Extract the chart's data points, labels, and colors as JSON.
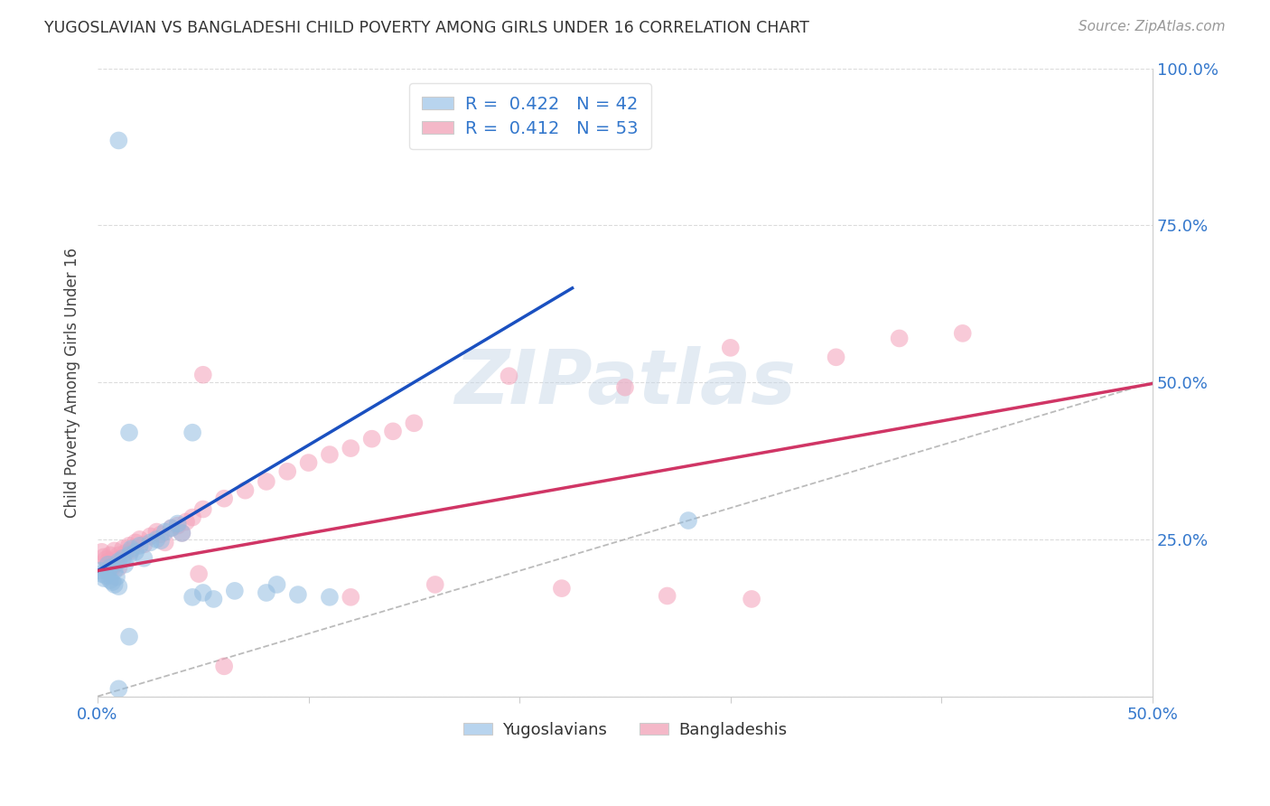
{
  "title": "YUGOSLAVIAN VS BANGLADESHI CHILD POVERTY AMONG GIRLS UNDER 16 CORRELATION CHART",
  "source": "Source: ZipAtlas.com",
  "ylabel": "Child Poverty Among Girls Under 16",
  "xlim": [
    0.0,
    0.5
  ],
  "ylim": [
    0.0,
    1.0
  ],
  "xticks": [
    0.0,
    0.1,
    0.2,
    0.3,
    0.4,
    0.5
  ],
  "xtick_labels_show": [
    "0.0%",
    "",
    "",
    "",
    "",
    "50.0%"
  ],
  "yticks": [
    0.0,
    0.25,
    0.5,
    0.75,
    1.0
  ],
  "ytick_labels_right": [
    "",
    "25.0%",
    "50.0%",
    "75.0%",
    "100.0%"
  ],
  "legend_entries": [
    {
      "label": "Yugoslavians",
      "R": "0.422",
      "N": "42",
      "scatter_color": "#92bce0",
      "box_color": "#b8d4ee"
    },
    {
      "label": "Bangladeshis",
      "R": "0.412",
      "N": "53",
      "scatter_color": "#f4a0b8",
      "box_color": "#f4b8c8"
    }
  ],
  "blue_line_color": "#1a50c0",
  "pink_line_color": "#d03565",
  "ref_line_color": "#aaaaaa",
  "watermark": "ZIPatlas",
  "watermark_color": "#c8d8e8",
  "grid_color": "#cccccc",
  "label_color": "#3377cc",
  "yug_points": [
    [
      0.001,
      0.2
    ],
    [
      0.002,
      0.195
    ],
    [
      0.003,
      0.188
    ],
    [
      0.004,
      0.192
    ],
    [
      0.005,
      0.198
    ],
    [
      0.005,
      0.21
    ],
    [
      0.006,
      0.185
    ],
    [
      0.006,
      0.205
    ],
    [
      0.007,
      0.182
    ],
    [
      0.008,
      0.178
    ],
    [
      0.008,
      0.2
    ],
    [
      0.009,
      0.19
    ],
    [
      0.01,
      0.175
    ],
    [
      0.01,
      0.215
    ],
    [
      0.012,
      0.22
    ],
    [
      0.013,
      0.21
    ],
    [
      0.015,
      0.225
    ],
    [
      0.016,
      0.235
    ],
    [
      0.018,
      0.23
    ],
    [
      0.02,
      0.24
    ],
    [
      0.022,
      0.22
    ],
    [
      0.025,
      0.245
    ],
    [
      0.028,
      0.25
    ],
    [
      0.03,
      0.248
    ],
    [
      0.032,
      0.262
    ],
    [
      0.035,
      0.268
    ],
    [
      0.038,
      0.275
    ],
    [
      0.04,
      0.26
    ],
    [
      0.045,
      0.42
    ],
    [
      0.015,
      0.42
    ],
    [
      0.05,
      0.165
    ],
    [
      0.01,
      0.012
    ],
    [
      0.28,
      0.28
    ],
    [
      0.085,
      0.178
    ],
    [
      0.015,
      0.095
    ],
    [
      0.065,
      0.168
    ],
    [
      0.08,
      0.165
    ],
    [
      0.095,
      0.162
    ],
    [
      0.11,
      0.158
    ],
    [
      0.045,
      0.158
    ],
    [
      0.055,
      0.155
    ],
    [
      0.01,
      0.885
    ]
  ],
  "bang_points": [
    [
      0.002,
      0.23
    ],
    [
      0.003,
      0.222
    ],
    [
      0.004,
      0.218
    ],
    [
      0.005,
      0.215
    ],
    [
      0.006,
      0.21
    ],
    [
      0.006,
      0.225
    ],
    [
      0.007,
      0.205
    ],
    [
      0.008,
      0.21
    ],
    [
      0.008,
      0.232
    ],
    [
      0.009,
      0.218
    ],
    [
      0.01,
      0.205
    ],
    [
      0.01,
      0.225
    ],
    [
      0.012,
      0.235
    ],
    [
      0.013,
      0.228
    ],
    [
      0.015,
      0.24
    ],
    [
      0.016,
      0.232
    ],
    [
      0.018,
      0.245
    ],
    [
      0.02,
      0.25
    ],
    [
      0.022,
      0.242
    ],
    [
      0.025,
      0.255
    ],
    [
      0.028,
      0.262
    ],
    [
      0.03,
      0.258
    ],
    [
      0.032,
      0.245
    ],
    [
      0.035,
      0.268
    ],
    [
      0.038,
      0.272
    ],
    [
      0.04,
      0.26
    ],
    [
      0.042,
      0.278
    ],
    [
      0.045,
      0.285
    ],
    [
      0.048,
      0.195
    ],
    [
      0.05,
      0.298
    ],
    [
      0.06,
      0.315
    ],
    [
      0.07,
      0.328
    ],
    [
      0.08,
      0.342
    ],
    [
      0.09,
      0.358
    ],
    [
      0.1,
      0.372
    ],
    [
      0.11,
      0.385
    ],
    [
      0.12,
      0.395
    ],
    [
      0.13,
      0.41
    ],
    [
      0.14,
      0.422
    ],
    [
      0.15,
      0.435
    ],
    [
      0.05,
      0.512
    ],
    [
      0.3,
      0.555
    ],
    [
      0.38,
      0.57
    ],
    [
      0.16,
      0.178
    ],
    [
      0.22,
      0.172
    ],
    [
      0.27,
      0.16
    ],
    [
      0.31,
      0.155
    ],
    [
      0.35,
      0.54
    ],
    [
      0.06,
      0.048
    ],
    [
      0.12,
      0.158
    ],
    [
      0.41,
      0.578
    ],
    [
      0.25,
      0.492
    ],
    [
      0.195,
      0.51
    ]
  ],
  "yug_line": [
    [
      0.0,
      0.2
    ],
    [
      0.225,
      0.65
    ]
  ],
  "bang_line": [
    [
      0.0,
      0.2
    ],
    [
      0.5,
      0.498
    ]
  ],
  "ref_line": [
    [
      0.0,
      0.0
    ],
    [
      1.0,
      1.0
    ]
  ]
}
